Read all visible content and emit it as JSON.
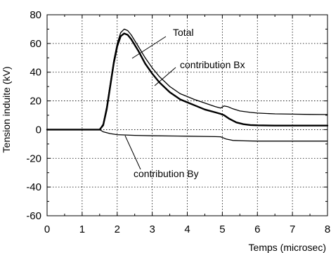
{
  "chart_data": {
    "type": "line",
    "xlabel": "Temps (microsec)",
    "ylabel": "Tension induite (kV)",
    "xlim": [
      0,
      8
    ],
    "ylim": [
      -60,
      80
    ],
    "xticks": [
      0,
      1,
      2,
      3,
      4,
      5,
      6,
      7,
      8
    ],
    "yticks": [
      -60,
      -40,
      -20,
      0,
      20,
      40,
      60,
      80
    ],
    "grid": true,
    "grid_style": "dotted",
    "annotations": [
      "Total",
      "contribution Bx",
      "contribution By"
    ],
    "series": [
      {
        "name": "Total",
        "x": [
          0,
          1.5,
          1.6,
          1.7,
          1.8,
          1.9,
          2.0,
          2.1,
          2.2,
          2.3,
          2.4,
          2.6,
          2.8,
          3.0,
          3.2,
          3.5,
          3.8,
          4.0,
          4.2,
          4.5,
          4.8,
          4.95,
          5.05,
          5.15,
          5.3,
          5.5,
          5.8,
          6.0,
          6.5,
          7.0,
          7.5,
          8.0
        ],
        "y": [
          0,
          0,
          4,
          16,
          32,
          48,
          60,
          67.5,
          70,
          69,
          66,
          58,
          50,
          43,
          37,
          30,
          25,
          23,
          21,
          18.5,
          16,
          15,
          16.5,
          16,
          14.5,
          13,
          12,
          11.5,
          11,
          10.8,
          10.6,
          10.5
        ]
      },
      {
        "name": "contribution Bx",
        "x": [
          0,
          1.5,
          1.6,
          1.7,
          1.8,
          1.9,
          2.0,
          2.1,
          2.2,
          2.3,
          2.4,
          2.6,
          2.8,
          3.0,
          3.2,
          3.5,
          3.8,
          4.0,
          4.2,
          4.5,
          4.8,
          4.95,
          5.05,
          5.2,
          5.4,
          5.6,
          5.8,
          6.0,
          6.5,
          7.0,
          7.5,
          8.0
        ],
        "y": [
          0,
          0,
          3,
          14,
          30,
          46,
          58,
          65,
          67,
          66,
          63,
          55,
          46,
          39,
          33,
          26,
          21,
          19,
          17,
          14,
          12,
          11,
          10,
          7.5,
          5,
          3.8,
          3.2,
          3,
          2.8,
          2.8,
          2.8,
          2.8
        ]
      },
      {
        "name": "contribution By",
        "x": [
          0,
          1.5,
          1.6,
          1.8,
          2.0,
          2.5,
          3.0,
          4.0,
          4.8,
          4.95,
          5.1,
          5.3,
          5.6,
          6.0,
          7.0,
          8.0
        ],
        "y": [
          0,
          0,
          -1.5,
          -2.8,
          -3.5,
          -4,
          -4.3,
          -4.6,
          -4.9,
          -5,
          -6.5,
          -7.5,
          -7.8,
          -8,
          -8,
          -8
        ]
      }
    ]
  }
}
